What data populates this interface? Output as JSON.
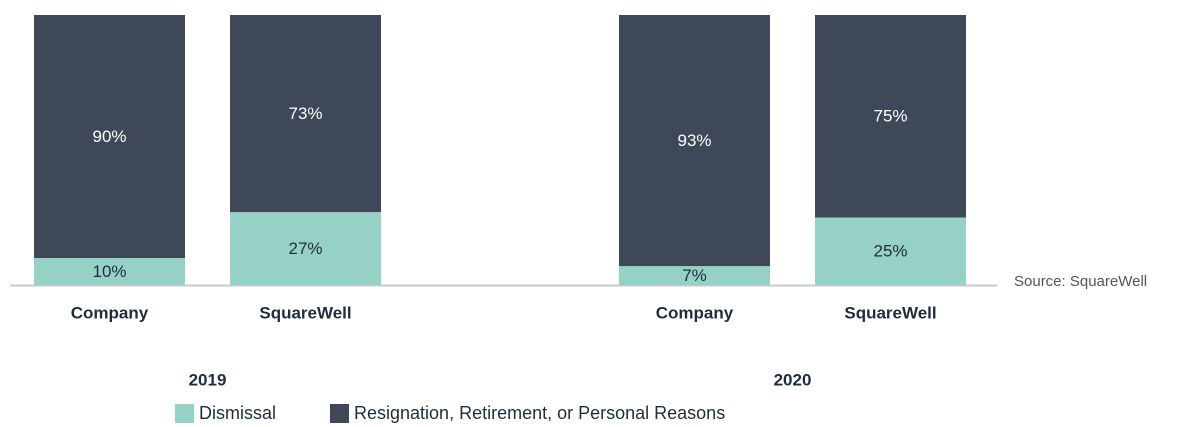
{
  "chart_data": {
    "type": "stacked_bar",
    "groups": [
      {
        "name": "2019",
        "categories": [
          "Company",
          "SquareWell"
        ]
      },
      {
        "name": "2020",
        "categories": [
          "Company",
          "SquareWell"
        ]
      }
    ],
    "series": [
      {
        "name": "Dismissal",
        "color": "#96d1c5",
        "values": [
          10,
          27,
          7,
          25
        ],
        "value_labels": [
          "10%",
          "27%",
          "7%",
          "25%"
        ]
      },
      {
        "name": "Resignation, Retirement, or Personal Reasons",
        "color": "#3f4859",
        "values": [
          90,
          73,
          93,
          75
        ],
        "value_labels": [
          "90%",
          "73%",
          "93%",
          "75%"
        ]
      }
    ],
    "ylim": [
      0,
      100
    ],
    "source": "Source: SquareWell"
  }
}
